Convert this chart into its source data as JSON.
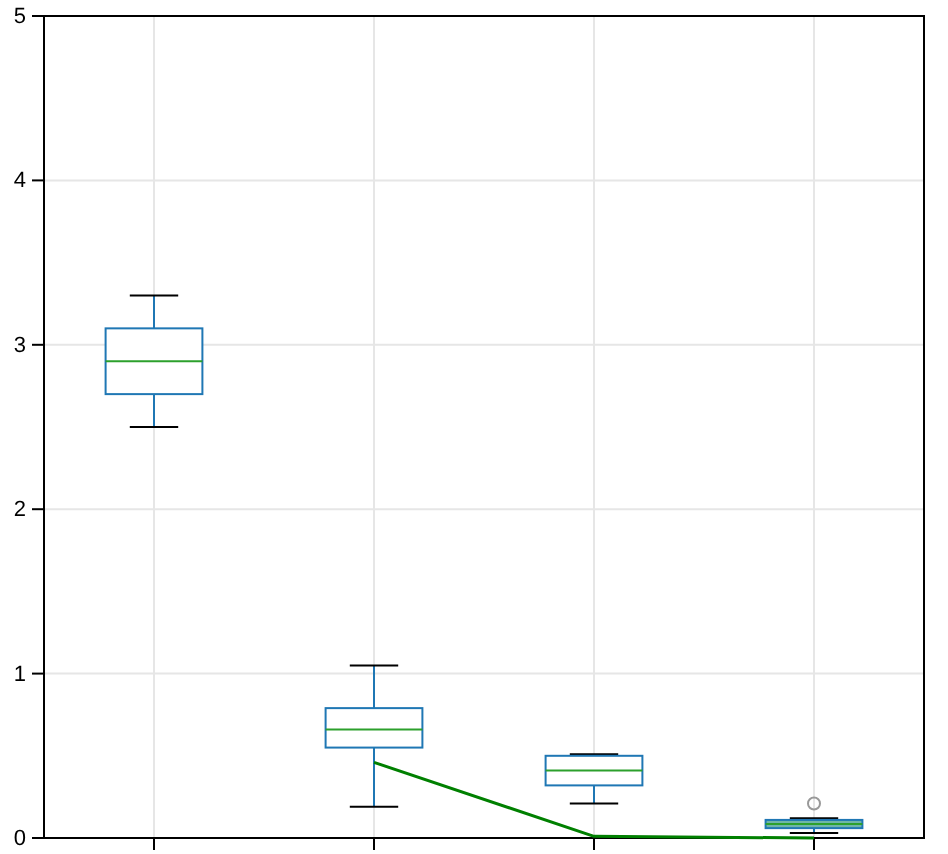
{
  "chart_data": {
    "type": "box",
    "categories": [
      null,
      null,
      null,
      null
    ],
    "ylim": [
      0,
      5
    ],
    "yticks": [
      0,
      1,
      2,
      3,
      4,
      5
    ],
    "grid": true,
    "tick_labels": "y",
    "series": [
      {
        "color": "#1f77b4",
        "colors": [
          "#ffffff",
          "#ffffff",
          "#ffffff",
          "#6fb5a8"
        ],
        "boxes": [
          {
            "low": 2.5,
            "q1": 2.7,
            "median": 2.9,
            "q3": 3.1,
            "high": 3.3
          },
          {
            "low": 0.19,
            "q1": 0.55,
            "median": 0.66,
            "q3": 0.79,
            "high": 1.05
          },
          {
            "low": 0.21,
            "q1": 0.32,
            "median": 0.41,
            "q3": 0.5,
            "high": 0.51
          },
          {
            "low": 0.03,
            "q1": 0.06,
            "median": 0.085,
            "q3": 0.11,
            "high": 0.12,
            "outliers": [
              0.21
            ]
          }
        ]
      },
      {
        "type": "line",
        "color": "#008000",
        "values": [
          null,
          0.46,
          0.01,
          0
        ]
      }
    ]
  }
}
